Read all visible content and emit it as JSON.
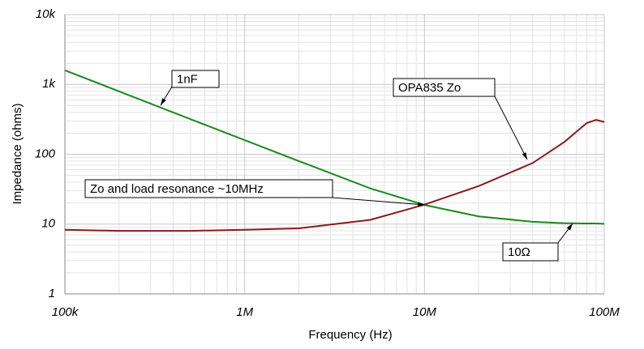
{
  "chart_data": {
    "type": "line",
    "x_label": "Frequency (Hz)",
    "y_label": "Impedance (ohms)",
    "x": [
      100000,
      200000,
      500000,
      1000000,
      2000000,
      5000000,
      10000000,
      20000000,
      40000000,
      60000000,
      80000000,
      90000000,
      100000000
    ],
    "series": [
      {
        "name": "1nF",
        "color": "#1a8a1a",
        "values": [
          1592,
          796,
          318,
          159,
          80,
          32.4,
          18.8,
          12.9,
          10.8,
          10.3,
          10.2,
          10.2,
          10.1
        ]
      },
      {
        "name": "OPA835 Zo",
        "color": "#8b1a1a",
        "values": [
          8.3,
          8,
          8,
          8.3,
          8.7,
          11.5,
          19,
          35,
          75,
          150,
          280,
          310,
          290
        ]
      }
    ],
    "xlim": [
      100000,
      100000000
    ],
    "ylim": [
      1,
      10000
    ],
    "xticks": [
      {
        "value": 100000,
        "label": "100k"
      },
      {
        "value": 1000000,
        "label": "1M"
      },
      {
        "value": 10000000,
        "label": "10M"
      },
      {
        "value": 100000000,
        "label": "100M"
      }
    ],
    "yticks": [
      1,
      10,
      100,
      {
        "value": 1000,
        "label": "1k"
      },
      {
        "value": 10000,
        "label": "10k"
      }
    ],
    "log_x": true,
    "log_y": true,
    "grid": true,
    "annotations": [
      "1nF",
      "OPA835 Zo",
      "Zo and load resonance ~10MHz",
      "10Ω"
    ]
  }
}
